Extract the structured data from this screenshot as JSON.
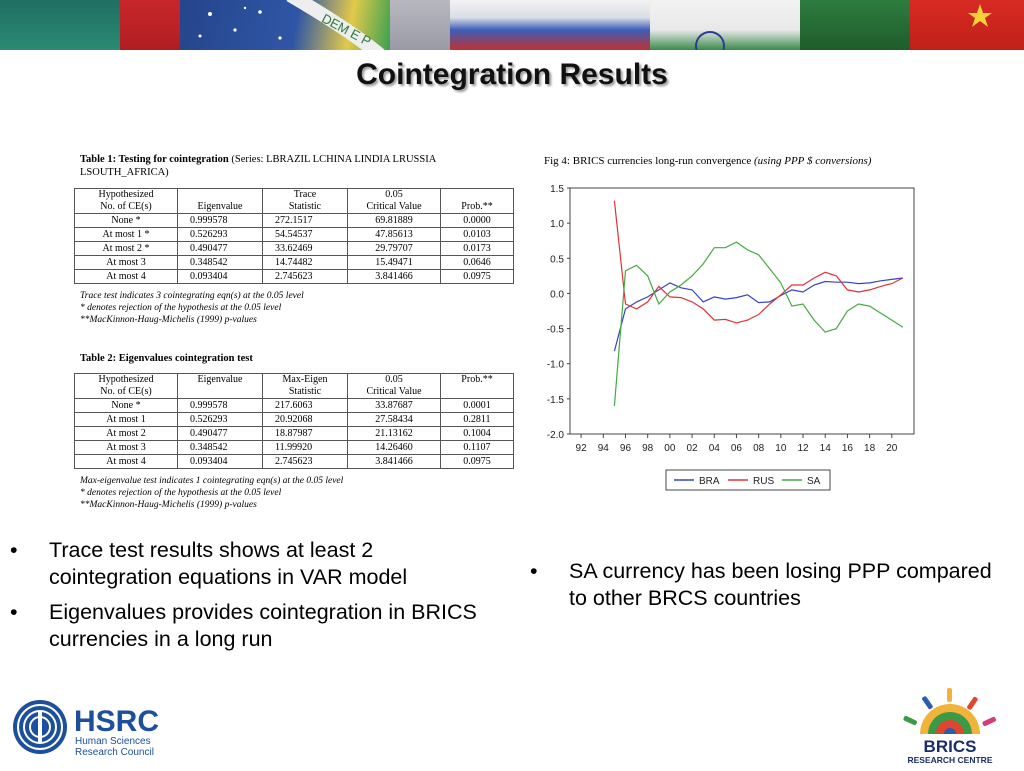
{
  "slide": {
    "title": "Cointegration Results"
  },
  "table1": {
    "caption_bold": "Table 1: Testing for cointegration",
    "caption_series": "(Series: LBRAZIL LCHINA LINDIA LRUSSIA",
    "caption_series2": "LSOUTH_AFRICA)",
    "headers": [
      "Hypothesized",
      "No. of CE(s)",
      "Eigenvalue",
      "Trace",
      "Statistic",
      "0.05",
      "Critical Value",
      "Prob.**"
    ],
    "rows": [
      [
        "None *",
        "0.999578",
        "272.1517",
        "69.81889",
        "0.0000"
      ],
      [
        "At most 1 *",
        "0.526293",
        "54.54537",
        "47.85613",
        "0.0103"
      ],
      [
        "At most 2 *",
        "0.490477",
        "33.62469",
        "29.79707",
        "0.0173"
      ],
      [
        "At most 3",
        "0.348542",
        "14.74482",
        "15.49471",
        "0.0646"
      ],
      [
        "At most 4",
        "0.093404",
        "2.745623",
        "3.841466",
        "0.0975"
      ]
    ],
    "notes": [
      "Trace test indicates 3 cointegrating eqn(s) at the 0.05 level",
      " * denotes rejection of the hypothesis at the 0.05 level",
      " **MacKinnon-Haug-Michelis (1999) p-values"
    ]
  },
  "table2": {
    "caption": "Table 2: Eigenvalues cointegration test",
    "headers": [
      "Hypothesized",
      "No. of CE(s)",
      "Eigenvalue",
      "Max-Eigen",
      "Statistic",
      "0.05",
      "Critical Value",
      "Prob.**"
    ],
    "rows": [
      [
        "None *",
        "0.999578",
        "217.6063",
        "33.87687",
        "0.0001"
      ],
      [
        "At most 1",
        "0.526293",
        "20.92068",
        "27.58434",
        "0.2811"
      ],
      [
        "At most 2",
        "0.490477",
        "18.87987",
        "21.13162",
        "0.1004"
      ],
      [
        "At most 3",
        "0.348542",
        "11.99920",
        "14.26460",
        "0.1107"
      ],
      [
        "At most 4",
        "0.093404",
        "2.745623",
        "3.841466",
        "0.0975"
      ]
    ],
    "notes": [
      "Max-eigenvalue test indicates 1 cointegrating eqn(s) at the 0.05 level",
      " * denotes rejection of the hypothesis at the 0.05 level",
      " **MacKinnon-Haug-Michelis (1999) p-values"
    ]
  },
  "figure": {
    "title": "Fig 4: BRICS currencies long-run convergence",
    "title_italic": "(using PPP $ conversions)"
  },
  "chart_data": {
    "type": "line",
    "title": "Fig 4: BRICS currencies long-run convergence (using PPP $ conversions)",
    "xlabel": "",
    "ylabel": "",
    "xlim": [
      1991,
      2022
    ],
    "ylim": [
      -2.0,
      1.5
    ],
    "x_tick_labels": [
      "92",
      "94",
      "96",
      "98",
      "00",
      "02",
      "04",
      "06",
      "08",
      "10",
      "12",
      "14",
      "16",
      "18",
      "20"
    ],
    "y_tick_labels": [
      "1.5",
      "1.0",
      "0.5",
      "0.0",
      "-0.5",
      "-1.0",
      "-1.5",
      "-2.0"
    ],
    "legend_position": "bottom",
    "series": [
      {
        "name": "BRA",
        "color": "#3344cc",
        "x": [
          1995,
          1996,
          1997,
          1998,
          1999,
          2000,
          2001,
          2002,
          2003,
          2004,
          2005,
          2006,
          2007,
          2008,
          2009,
          2010,
          2011,
          2012,
          2013,
          2014,
          2015,
          2016,
          2017,
          2018,
          2019,
          2020,
          2021
        ],
        "y": [
          -0.82,
          -0.22,
          -0.12,
          -0.05,
          0.05,
          0.15,
          0.08,
          0.05,
          -0.12,
          -0.05,
          -0.08,
          -0.06,
          -0.02,
          -0.13,
          -0.12,
          -0.03,
          0.05,
          0.02,
          0.12,
          0.17,
          0.16,
          0.16,
          0.14,
          0.15,
          0.18,
          0.2,
          0.22
        ]
      },
      {
        "name": "RUS",
        "color": "#dd3333",
        "x": [
          1995,
          1996,
          1997,
          1998,
          1999,
          2000,
          2001,
          2002,
          2003,
          2004,
          2005,
          2006,
          2007,
          2008,
          2009,
          2010,
          2011,
          2012,
          2013,
          2014,
          2015,
          2016,
          2017,
          2018,
          2019,
          2020,
          2021
        ],
        "y": [
          1.32,
          -0.15,
          -0.22,
          -0.12,
          0.1,
          -0.05,
          -0.06,
          -0.12,
          -0.22,
          -0.38,
          -0.37,
          -0.42,
          -0.38,
          -0.3,
          -0.15,
          -0.02,
          0.12,
          0.12,
          0.22,
          0.3,
          0.25,
          0.05,
          0.02,
          0.05,
          0.1,
          0.14,
          0.22
        ]
      },
      {
        "name": "SA",
        "color": "#44aa44",
        "x": [
          1995,
          1996,
          1997,
          1998,
          1999,
          2000,
          2001,
          2002,
          2003,
          2004,
          2005,
          2006,
          2007,
          2008,
          2009,
          2010,
          2011,
          2012,
          2013,
          2014,
          2015,
          2016,
          2017,
          2018,
          2019,
          2020,
          2021
        ],
        "y": [
          -1.6,
          0.32,
          0.4,
          0.25,
          -0.15,
          0.02,
          0.12,
          0.25,
          0.42,
          0.65,
          0.65,
          0.73,
          0.62,
          0.55,
          0.35,
          0.15,
          -0.18,
          -0.15,
          -0.38,
          -0.55,
          -0.5,
          -0.25,
          -0.15,
          -0.18,
          -0.28,
          -0.38,
          -0.48
        ]
      }
    ]
  },
  "bullets_left": [
    "Trace test results shows at least 2 cointegration equations in VAR model",
    "Eigenvalues provides cointegration in BRICS currencies in a long run"
  ],
  "bullets_right": [
    "SA currency has been losing PPP compared to other BRCS countries"
  ],
  "bullet_symbol": "•",
  "logos": {
    "hsrc_name": "HSRC",
    "hsrc_line1": "Human Sciences",
    "hsrc_line2": "Research Council",
    "brics_name": "BRICS",
    "brics_sub": "RESEARCH CENTRE"
  },
  "banner_text": "DEM E P"
}
